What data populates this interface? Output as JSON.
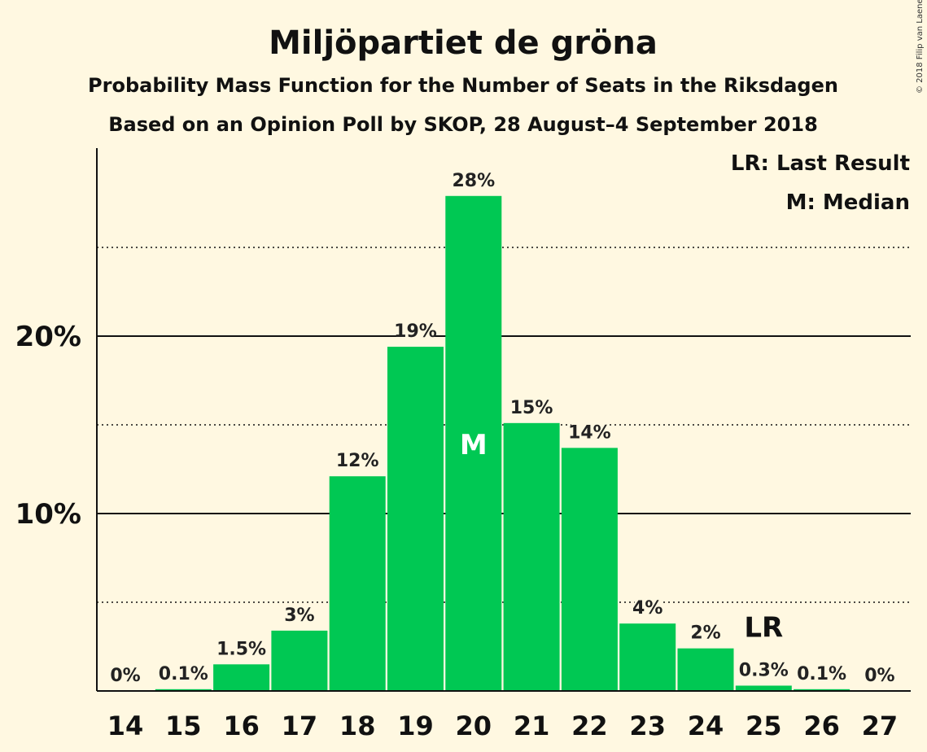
{
  "title": "Miljöpartiet de gröna",
  "subtitle1": "Probability Mass Function for the Number of Seats in the Riksdagen",
  "subtitle2": "Based on an Opinion Poll by SKOP, 28 August–4 September 2018",
  "copyright": "© 2018 Filip van Laenen",
  "legend": {
    "lr": "LR: Last Result",
    "m": "M: Median"
  },
  "markers": {
    "median_label": "M",
    "median_seat": 20,
    "last_result_label": "LR",
    "last_result_seat": 25
  },
  "colors": {
    "background": "#FFF8E1",
    "bar": "#00C853",
    "text": "#111111"
  },
  "chart_data": {
    "type": "bar",
    "title": "Miljöpartiet de gröna",
    "categories": [
      "14",
      "15",
      "16",
      "17",
      "18",
      "19",
      "20",
      "21",
      "22",
      "23",
      "24",
      "25",
      "26",
      "27"
    ],
    "values": [
      0,
      0.1,
      1.5,
      3.4,
      12.1,
      19.4,
      27.9,
      15.1,
      13.7,
      3.8,
      2.4,
      0.3,
      0.1,
      0
    ],
    "value_labels": [
      "0%",
      "0.1%",
      "1.5%",
      "3%",
      "12%",
      "19%",
      "28%",
      "15%",
      "14%",
      "4%",
      "2%",
      "0.3%",
      "0.1%",
      "0%"
    ],
    "yticks": [
      10,
      20
    ],
    "ytick_labels": [
      "10%",
      "20%"
    ],
    "ylim": [
      0,
      30
    ],
    "grid": "solid major lines at 10% steps, dotted minor lines at 5% steps",
    "legend_position": "top-right"
  }
}
